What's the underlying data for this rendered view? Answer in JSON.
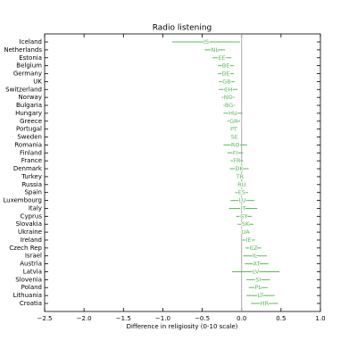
{
  "chart_data": {
    "type": "errorbar",
    "title": "Radio listening",
    "x_label": "Difference in religiosity (0-10 scale)",
    "categories": [
      "Iceland",
      "Netherlands",
      "Estonia",
      "Belgium",
      "Germany",
      "UK",
      "Switzerland",
      "Norway",
      "Bulgaria",
      "Hungary",
      "Greece",
      "Portugal",
      "Sweden",
      "Romania",
      "Finland",
      "France",
      "Denmark",
      "Turkey",
      "Russia",
      "Spain",
      "Luxembourg",
      "Italy",
      "Cyprus",
      "Slovakia",
      "Ukraine",
      "Ireland",
      "Czech Rep",
      "Israel",
      "Austria",
      "Latvia",
      "Slovenia",
      "Poland",
      "Lithuania",
      "Croatia"
    ],
    "codes": [
      "IS",
      "NL",
      "EE",
      "BE",
      "DE",
      "GB",
      "CH",
      "NO",
      "BG",
      "HU",
      "GR",
      "PT",
      "SE",
      "RO",
      "FI",
      "FR",
      "DK",
      "TR",
      "RU",
      "ES",
      "LU",
      "IT",
      "CY",
      "SK",
      "UA",
      "IE",
      "CZ",
      "IL",
      "AT",
      "LV",
      "SI",
      "PL",
      "LT",
      "HR"
    ],
    "values": [
      -0.45,
      -0.34,
      -0.25,
      -0.2,
      -0.2,
      -0.19,
      -0.17,
      -0.17,
      -0.16,
      -0.11,
      -0.1,
      -0.1,
      -0.09,
      -0.08,
      -0.08,
      -0.06,
      -0.03,
      -0.02,
      0.0,
      0.0,
      0.01,
      0.02,
      0.03,
      0.05,
      0.05,
      0.09,
      0.15,
      0.17,
      0.19,
      0.18,
      0.21,
      0.21,
      0.24,
      0.29
    ],
    "errors": [
      0.43,
      0.13,
      0.12,
      0.1,
      0.1,
      0.1,
      0.12,
      0.08,
      0.07,
      0.12,
      0.08,
      0.02,
      0.04,
      0.15,
      0.1,
      0.08,
      0.12,
      0.02,
      0.06,
      0.08,
      0.15,
      0.18,
      0.1,
      0.1,
      0.06,
      0.08,
      0.1,
      0.15,
      0.15,
      0.3,
      0.15,
      0.12,
      0.18,
      0.17
    ],
    "color": "#5cb85c",
    "vline": 0,
    "xlim": [
      -2.5,
      1.0
    ],
    "xticks": [
      {
        "value": -2.5,
        "label": "−2.5"
      },
      {
        "value": -2.0,
        "label": "−2.0"
      },
      {
        "value": -1.5,
        "label": "−1.5"
      },
      {
        "value": -1.0,
        "label": "−1.0"
      },
      {
        "value": -0.5,
        "label": "−0.5"
      },
      {
        "value": 0.0,
        "label": "0.0"
      },
      {
        "value": 0.5,
        "label": "0.5"
      },
      {
        "value": 1.0,
        "label": "1.0"
      }
    ]
  }
}
